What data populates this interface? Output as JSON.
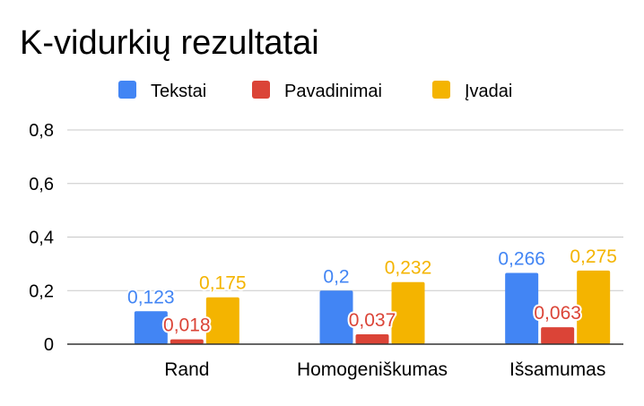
{
  "chart_data": {
    "type": "bar",
    "title": "K-vidurkių rezultatai",
    "categories": [
      "Rand",
      "Homogeniškumas",
      "Išsamumas"
    ],
    "series": [
      {
        "name": "Tekstai",
        "values": [
          0.123,
          0.2,
          0.266
        ],
        "labels": [
          "0,123",
          "0,2",
          "0,266"
        ],
        "color": "#4285F4"
      },
      {
        "name": "Pavadinimai",
        "values": [
          0.018,
          0.037,
          0.063
        ],
        "labels": [
          "0,018",
          "0,037",
          "0,063"
        ],
        "color": "#DB4437"
      },
      {
        "name": "Įvadai",
        "values": [
          0.175,
          0.232,
          0.275
        ],
        "labels": [
          "0,175",
          "0,232",
          "0,275"
        ],
        "color": "#F4B400"
      }
    ],
    "ylim": [
      0,
      0.8
    ],
    "yticks": [
      0,
      0.2,
      0.4,
      0.6,
      0.8
    ],
    "ytick_labels": [
      "0",
      "0,2",
      "0,4",
      "0,6",
      "0,8"
    ],
    "grid": true,
    "legend_position": "top"
  }
}
